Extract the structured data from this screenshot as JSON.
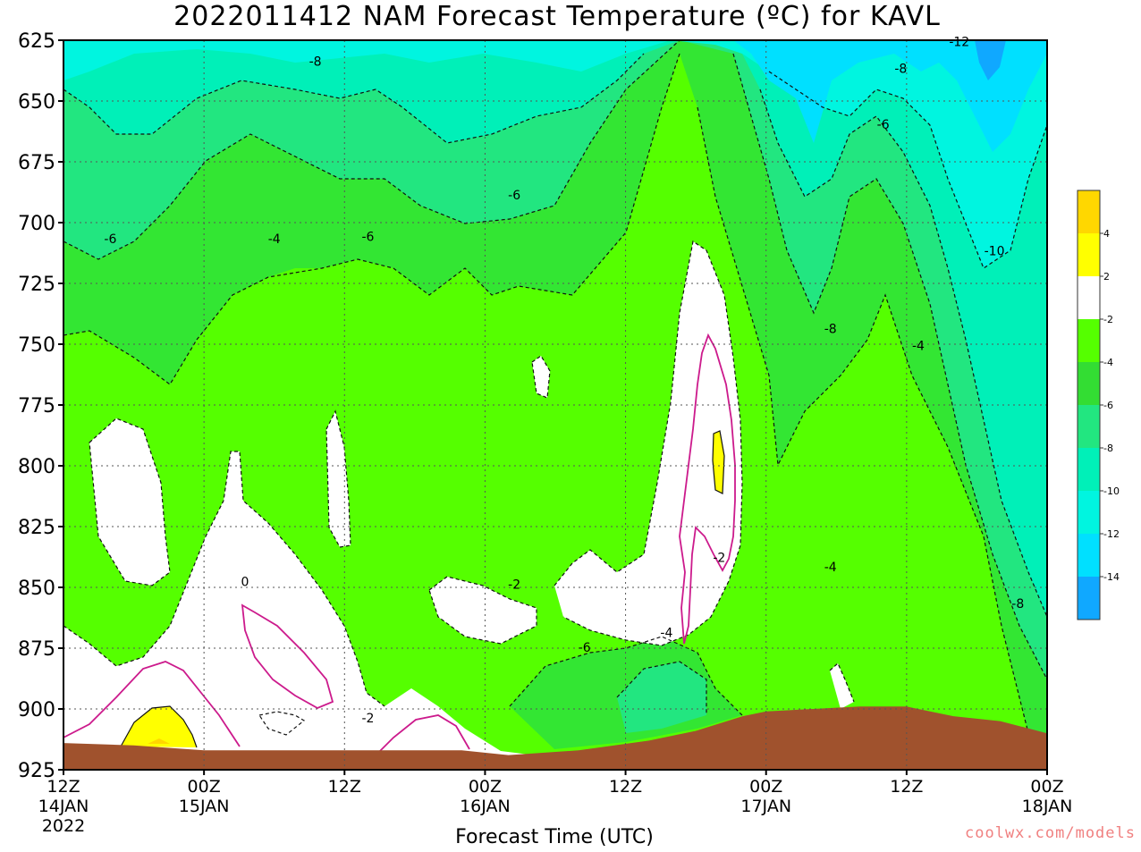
{
  "chart_data": {
    "type": "heatmap",
    "title": "2022011412 NAM Forecast Temperature (ºC) for KAVL",
    "xlabel": "Forecast Time (UTC)",
    "ylabel": "",
    "y_ticks": [
      "625",
      "650",
      "675",
      "700",
      "725",
      "750",
      "775",
      "800",
      "825",
      "850",
      "875",
      "900",
      "925"
    ],
    "y_values": [
      625,
      650,
      675,
      700,
      725,
      750,
      775,
      800,
      825,
      850,
      875,
      900,
      925
    ],
    "x_ticks": [
      {
        "hour": 0,
        "line1": "12Z",
        "line2": "14JAN",
        "line3": "2022"
      },
      {
        "hour": 12,
        "line1": "00Z",
        "line2": "15JAN",
        "line3": ""
      },
      {
        "hour": 24,
        "line1": "12Z",
        "line2": "",
        "line3": ""
      },
      {
        "hour": 36,
        "line1": "00Z",
        "line2": "16JAN",
        "line3": ""
      },
      {
        "hour": 48,
        "line1": "12Z",
        "line2": "",
        "line3": ""
      },
      {
        "hour": 60,
        "line1": "00Z",
        "line2": "17JAN",
        "line3": ""
      },
      {
        "hour": 72,
        "line1": "12Z",
        "line2": "",
        "line3": ""
      },
      {
        "hour": 84,
        "line1": "00Z",
        "line2": "18JAN",
        "line3": ""
      }
    ],
    "xlim_hours": [
      0,
      84
    ],
    "ylim_hpa": [
      625,
      925
    ],
    "grid": true,
    "colorbar": {
      "labels": [
        "4",
        "2",
        "-2",
        "-4",
        "-6",
        "-8",
        "-10",
        "-12",
        "-14"
      ],
      "bands": [
        {
          "from": 4,
          "to": 6,
          "color": "#ffd700"
        },
        {
          "from": 2,
          "to": 4,
          "color": "#ffff00"
        },
        {
          "from": -2,
          "to": 2,
          "color": "#ffffff"
        },
        {
          "from": -4,
          "to": -2,
          "color": "#55ff00"
        },
        {
          "from": -6,
          "to": -4,
          "color": "#33dd33"
        },
        {
          "from": -8,
          "to": -6,
          "color": "#22e680"
        },
        {
          "from": -10,
          "to": -8,
          "color": "#00f0b8"
        },
        {
          "from": -12,
          "to": -10,
          "color": "#00f5e0"
        },
        {
          "from": -14,
          "to": -12,
          "color": "#00e0ff"
        },
        {
          "from": -16,
          "to": -14,
          "color": "#10a8ff"
        }
      ]
    },
    "contour_labels": [
      {
        "text": "-8",
        "hour": 21.5,
        "p": 634
      },
      {
        "text": "-8",
        "hour": 71.5,
        "p": 637
      },
      {
        "text": "-12",
        "hour": 76.5,
        "p": 626
      },
      {
        "text": "-6",
        "hour": 70.0,
        "p": 660
      },
      {
        "text": "-6",
        "hour": 38.5,
        "p": 689
      },
      {
        "text": "-6",
        "hour": 4.0,
        "p": 707
      },
      {
        "text": "-4",
        "hour": 18.0,
        "p": 707
      },
      {
        "text": "-6",
        "hour": 26.0,
        "p": 706
      },
      {
        "text": "-10",
        "hour": 79.5,
        "p": 712
      },
      {
        "text": "-8",
        "hour": 65.5,
        "p": 744
      },
      {
        "text": "-4",
        "hour": 73.0,
        "p": 751
      },
      {
        "text": "0",
        "hour": 15.5,
        "p": 848
      },
      {
        "text": "-2",
        "hour": 38.5,
        "p": 849
      },
      {
        "text": "-2",
        "hour": 56.0,
        "p": 838
      },
      {
        "text": "-4",
        "hour": 65.5,
        "p": 842
      },
      {
        "text": "-4",
        "hour": 51.5,
        "p": 869
      },
      {
        "text": "-6",
        "hour": 44.5,
        "p": 875
      },
      {
        "text": "-8",
        "hour": 81.5,
        "p": 857
      },
      {
        "text": "-2",
        "hour": 26.0,
        "p": 904
      }
    ],
    "terrain_pressure": [
      [
        0,
        914
      ],
      [
        6,
        915
      ],
      [
        12,
        917
      ],
      [
        20,
        917
      ],
      [
        26,
        917
      ],
      [
        34,
        917
      ],
      [
        38,
        919
      ],
      [
        44,
        917
      ],
      [
        50,
        913
      ],
      [
        54,
        909
      ],
      [
        58,
        903
      ],
      [
        60,
        901
      ],
      [
        64,
        900
      ],
      [
        68,
        899
      ],
      [
        72,
        899
      ],
      [
        76,
        903
      ],
      [
        80,
        905
      ],
      [
        84,
        910
      ]
    ]
  },
  "x_axis_title": "Forecast Time (UTC)",
  "credit": "coolwx.com/models"
}
